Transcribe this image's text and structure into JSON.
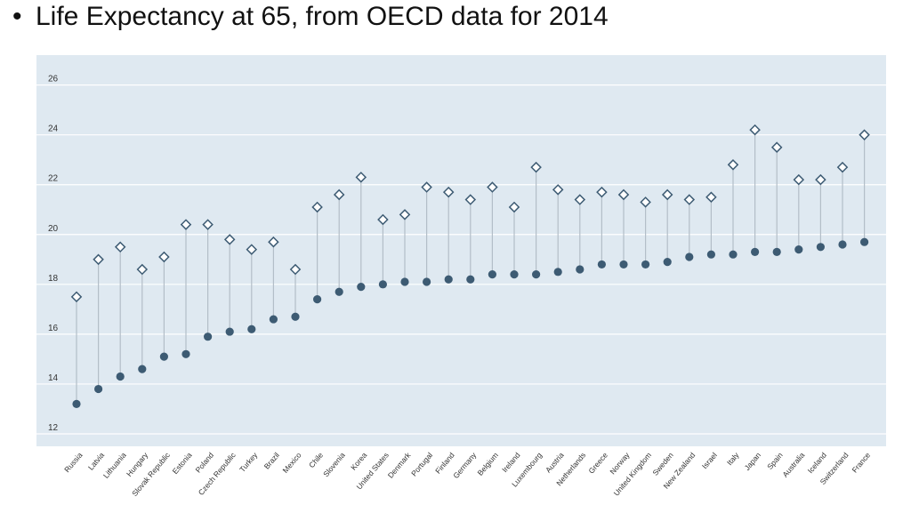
{
  "slide": {
    "bullet": "•",
    "title": "Life Expectancy at 65, from OECD data for 2014"
  },
  "colors": {
    "plot_background": "#dfe9f1",
    "grid": "#ffffff",
    "stem": "#b3bec8",
    "marker": "#3d5b73",
    "diamond_fill": "#ffffff"
  },
  "chart_data": {
    "type": "scatter",
    "title": "Life Expectancy at 65, from OECD data for 2014",
    "xlabel": "",
    "ylabel": "",
    "ylim": [
      11.5,
      27.2
    ],
    "yticks": [
      12,
      14,
      16,
      18,
      20,
      22,
      24,
      26
    ],
    "grid": true,
    "categories": [
      "Russia",
      "Latvia",
      "Lithuania",
      "Hungary",
      "Slovak Republic",
      "Estonia",
      "Poland",
      "Czech Republic",
      "Turkey",
      "Brazil",
      "Mexico",
      "Chile",
      "Slovenia",
      "Korea",
      "United States",
      "Denmark",
      "Portugal",
      "Finland",
      "Germany",
      "Belgium",
      "Ireland",
      "Luxembourg",
      "Austria",
      "Netherlands",
      "Greece",
      "Norway",
      "United Kingdom",
      "Sweden",
      "New Zealand",
      "Israel",
      "Italy",
      "Japan",
      "Spain",
      "Australia",
      "Iceland",
      "Switzerland",
      "France"
    ],
    "series": [
      {
        "name": "Filled circle marker",
        "marker": "circle",
        "values": [
          13.2,
          13.8,
          14.3,
          14.6,
          15.1,
          15.2,
          15.9,
          16.1,
          16.2,
          16.6,
          16.7,
          17.4,
          17.7,
          17.9,
          18.0,
          18.1,
          18.1,
          18.2,
          18.2,
          18.4,
          18.4,
          18.4,
          18.5,
          18.6,
          18.8,
          18.8,
          18.8,
          18.9,
          19.1,
          19.2,
          19.2,
          19.3,
          19.3,
          19.4,
          19.5,
          19.6,
          19.7
        ]
      },
      {
        "name": "Open diamond marker",
        "marker": "diamond",
        "values": [
          17.5,
          19.0,
          19.5,
          18.6,
          19.1,
          20.4,
          20.4,
          19.8,
          19.4,
          19.7,
          18.6,
          21.1,
          21.6,
          22.3,
          20.6,
          20.8,
          21.9,
          21.7,
          21.4,
          21.9,
          21.1,
          22.7,
          21.8,
          21.4,
          21.7,
          21.6,
          21.3,
          21.6,
          21.4,
          21.5,
          22.8,
          24.2,
          23.5,
          22.2,
          22.2,
          22.7,
          24.0
        ]
      }
    ]
  }
}
